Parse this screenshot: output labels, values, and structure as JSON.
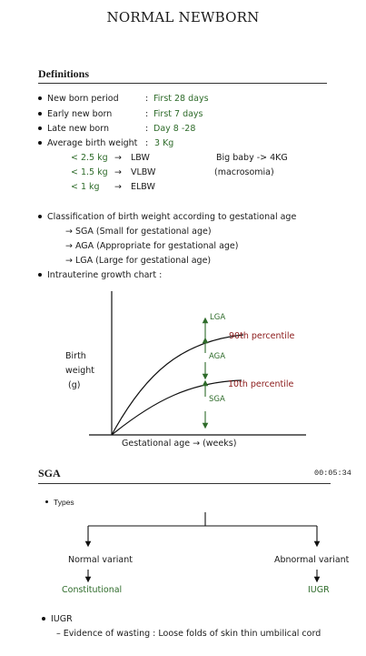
{
  "title": "NORMAL NEWBORN",
  "definitions": {
    "heading": "Definitions",
    "rows": [
      {
        "label": "New born period",
        "colon": ":",
        "value": "First 28 days"
      },
      {
        "label": "Early new born",
        "colon": ":",
        "value": "First 7 days"
      },
      {
        "label": "Late new born",
        "colon": ":",
        "value": "Day 8 -28"
      },
      {
        "label": "Average birth weight",
        "colon": ":",
        "value": "3 Kg"
      }
    ],
    "weights": [
      {
        "cond": "< 2.5 kg",
        "arrow": "→",
        "abbr": "LBW"
      },
      {
        "cond": "< 1.5 kg",
        "arrow": "→",
        "abbr": "VLBW"
      },
      {
        "cond": "< 1 kg",
        "arrow": "→",
        "abbr": "ELBW"
      }
    ],
    "big_baby": "Big baby -> 4KG",
    "macrosomia": "(macrosomia)",
    "classification": "Classification of birth weight according to gestational age",
    "classes": [
      "→ SGA (Small for gestational age)",
      "→ AGA (Appropriate for gestational age)",
      "→ LGA (Large for gestational age)"
    ],
    "growth_chart": "Intrauterine growth chart :"
  },
  "chart": {
    "y_label_lines": [
      "Birth",
      "weight",
      "(g)"
    ],
    "x_label": "Gestational age → (weeks)",
    "lga": "LGA",
    "aga": "AGA",
    "sga": "SGA",
    "p90": "90th percentile",
    "p10": "10th percentile"
  },
  "sga_section": {
    "heading": "SGA",
    "timestamp": "00:05:34",
    "types": "Types",
    "normal_variant": "Normal variant",
    "abnormal_variant": "Abnormal variant",
    "constitutional": "Constitutional",
    "iugr_right": "IUGR",
    "iugr_bullet": "IUGR",
    "evidence": "Evidence of wasting : Loose folds of skin thin umbilical cord"
  },
  "colors": {
    "green": "#2e6b2a",
    "red": "#8b1a1a",
    "ink": "#1a1a1a"
  }
}
